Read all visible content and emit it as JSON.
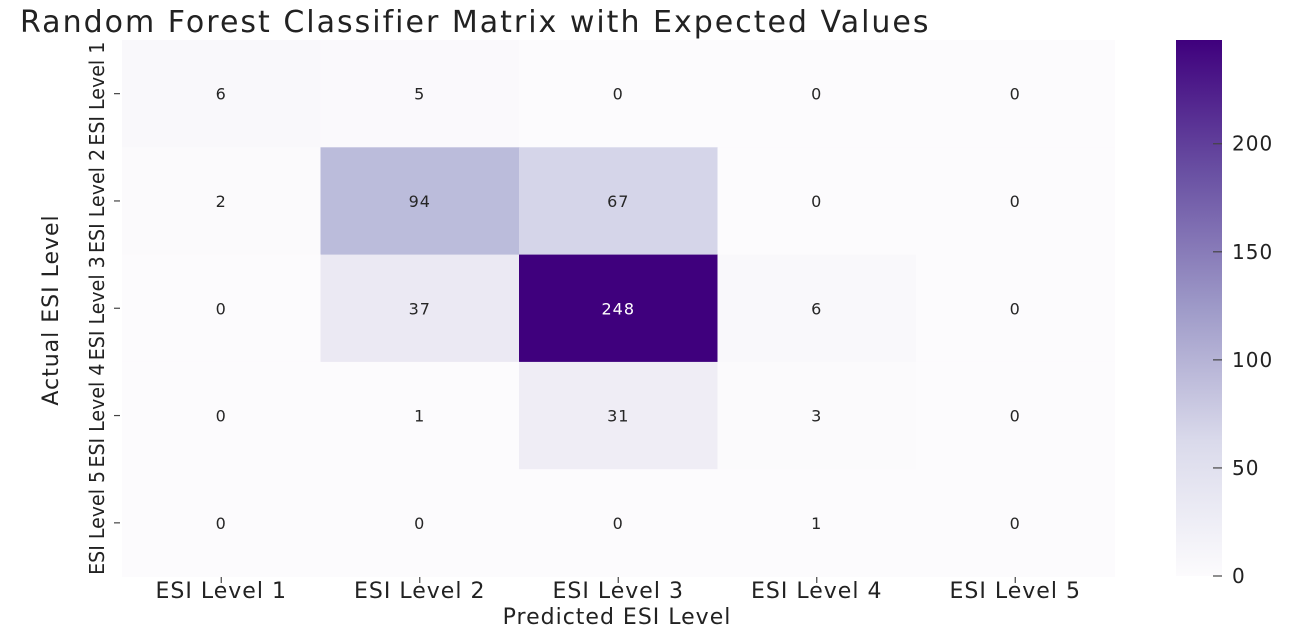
{
  "chart_data": {
    "type": "heatmap",
    "title": "Random Forest Classifier Matrix with Expected Values",
    "xlabel": "Predicted ESI Level",
    "ylabel": "Actual ESI Level",
    "x_categories": [
      "ESI Level 1",
      "ESI Level 2",
      "ESI Level 3",
      "ESI Level 4",
      "ESI Level 5"
    ],
    "y_categories": [
      "ESI Level 1",
      "ESI Level 2",
      "ESI Level 3",
      "ESI Level 4",
      "ESI Level 5"
    ],
    "values": [
      [
        6,
        5,
        0,
        0,
        0
      ],
      [
        2,
        94,
        67,
        0,
        0
      ],
      [
        0,
        37,
        248,
        6,
        0
      ],
      [
        0,
        1,
        31,
        3,
        0
      ],
      [
        0,
        0,
        0,
        1,
        0
      ]
    ],
    "colormap": "Purples",
    "colorbar": {
      "range": [
        0,
        248
      ],
      "ticks": [
        0,
        50,
        100,
        150,
        200
      ]
    },
    "colors": {
      "low": "#fcfbfd",
      "high": "#3f007d"
    }
  }
}
